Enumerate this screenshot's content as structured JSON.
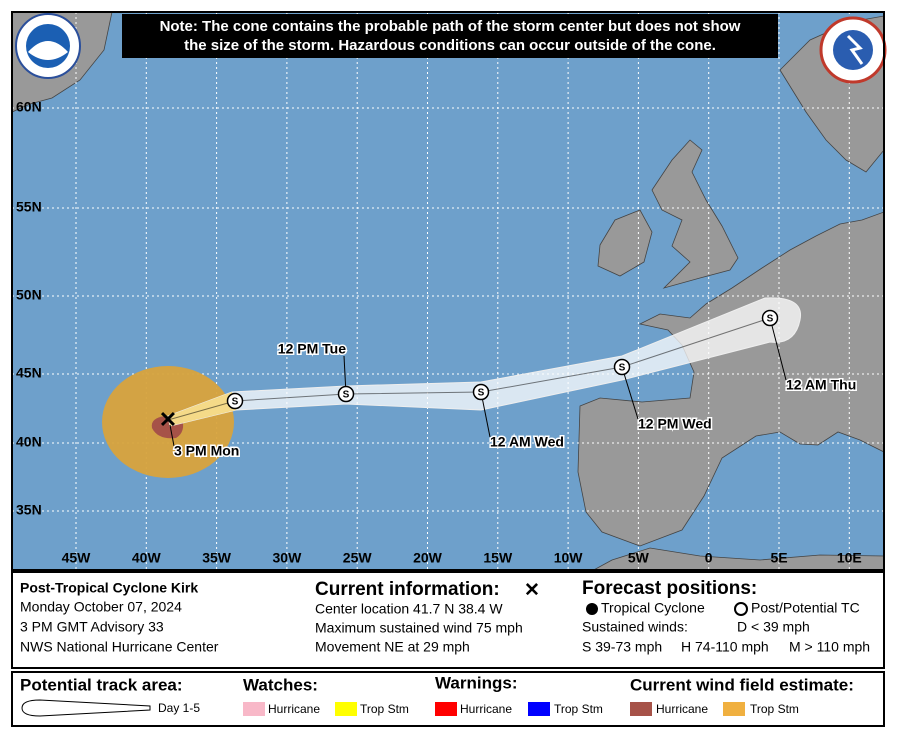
{
  "note": [
    "Note: The cone contains the probable path of the storm center but does not show",
    "the size of the storm. Hazardous conditions can occur outside of the cone."
  ],
  "lat_labels": [
    "60N",
    "55N",
    "50N",
    "45N",
    "40N",
    "35N"
  ],
  "lon_labels": [
    "45W",
    "40W",
    "35W",
    "30W",
    "25W",
    "20W",
    "15W",
    "10W",
    "5W",
    "0",
    "5E",
    "10E"
  ],
  "current_label": "3 PM Mon",
  "forecast_points": [
    {
      "label": "12 PM Tue",
      "symbol": "S"
    },
    {
      "label": "12 AM Wed",
      "symbol": "S"
    },
    {
      "label": "12 PM Wed",
      "symbol": "S"
    },
    {
      "label": "12 AM Thu",
      "symbol": "S"
    },
    {
      "symbol": "S"
    }
  ],
  "storm": {
    "name": "Post-Tropical Cyclone Kirk",
    "date": "Monday October 07, 2024",
    "advisory": "3 PM GMT Advisory 33",
    "office": "NWS National Hurricane Center"
  },
  "current": {
    "title": "Current information:",
    "lines": [
      "Center location 41.7 N 38.4 W",
      "Maximum sustained wind 75 mph",
      "Movement NE at 29 mph"
    ]
  },
  "forecast": {
    "title": "Forecast positions:",
    "tropical": "Tropical Cyclone",
    "post": "Post/Potential TC",
    "winds_title": "Sustained winds:",
    "d": "D < 39 mph",
    "s": "S 39-73 mph",
    "h": "H 74-110 mph",
    "m": "M > 110 mph"
  },
  "legend": {
    "track_title": "Potential track area:",
    "track_item": "Day 1-5",
    "watches_title": "Watches:",
    "watches": [
      "Hurricane",
      "Trop Stm"
    ],
    "warnings_title": "Warnings:",
    "warnings": [
      "Hurricane",
      "Trop Stm"
    ],
    "wind_title": "Current wind field estimate:",
    "wind": [
      "Hurricane",
      "Trop Stm"
    ]
  }
}
